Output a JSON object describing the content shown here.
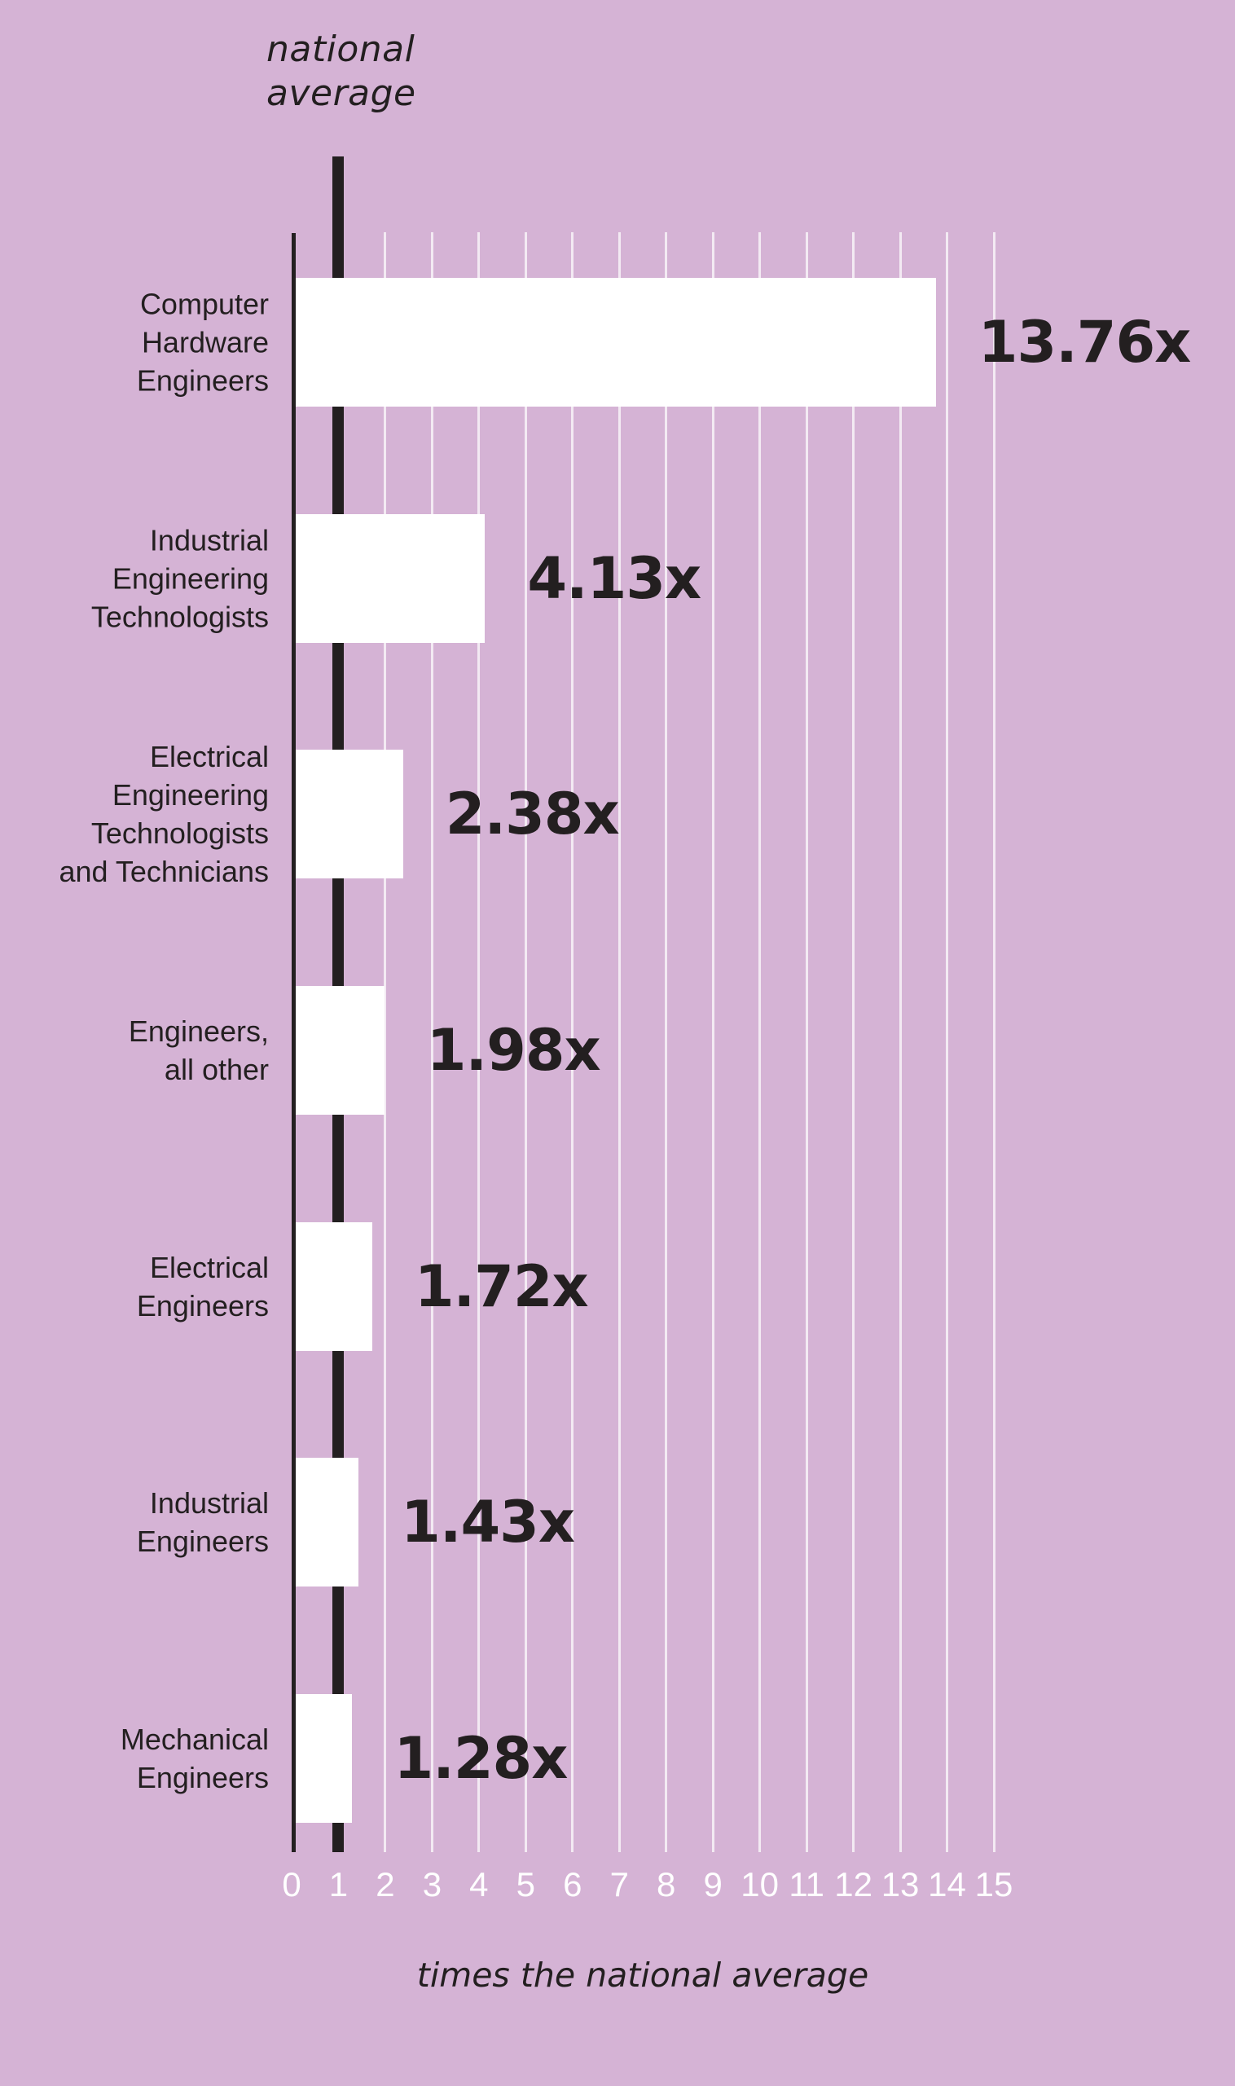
{
  "reference_line": {
    "label": "national average",
    "value": 1
  },
  "chart_data": {
    "type": "bar",
    "orientation": "horizontal",
    "title": "",
    "xlabel": "times the national average",
    "xlim": [
      0,
      15
    ],
    "x_ticks": [
      0,
      1,
      2,
      3,
      4,
      5,
      6,
      7,
      8,
      9,
      10,
      11,
      12,
      13,
      14,
      15
    ],
    "grid": true,
    "legend": false,
    "categories": [
      "Computer Hardware Engineers",
      "Industrial Engineering Technologists",
      "Electrical Engineering Technologists and Technicians",
      "Engineers, all other",
      "Electrical Engineers",
      "Industrial Engineers",
      "Mechanical Engineers"
    ],
    "category_label_lines": [
      [
        "Computer",
        "Hardware",
        "Engineers"
      ],
      [
        "Industrial",
        "Engineering",
        "Technologists"
      ],
      [
        "Electrical",
        "Engineering",
        "Technologists",
        "and Technicians"
      ],
      [
        "Engineers,",
        "all other"
      ],
      [
        "Electrical",
        "Engineers"
      ],
      [
        "Industrial",
        "Engineers"
      ],
      [
        "Mechanical",
        "Engineers"
      ]
    ],
    "values": [
      13.76,
      4.13,
      2.38,
      1.98,
      1.72,
      1.43,
      1.28
    ],
    "value_labels": [
      "13.76x",
      "4.13x",
      "2.38x",
      "1.98x",
      "1.72x",
      "1.43x",
      "1.28x"
    ]
  },
  "colors": {
    "background": "#d5b3d5",
    "bar": "#ffffff",
    "ink": "#231f20",
    "gridline": "rgba(255,255,255,0.72)",
    "tick_label": "#ffffff"
  }
}
